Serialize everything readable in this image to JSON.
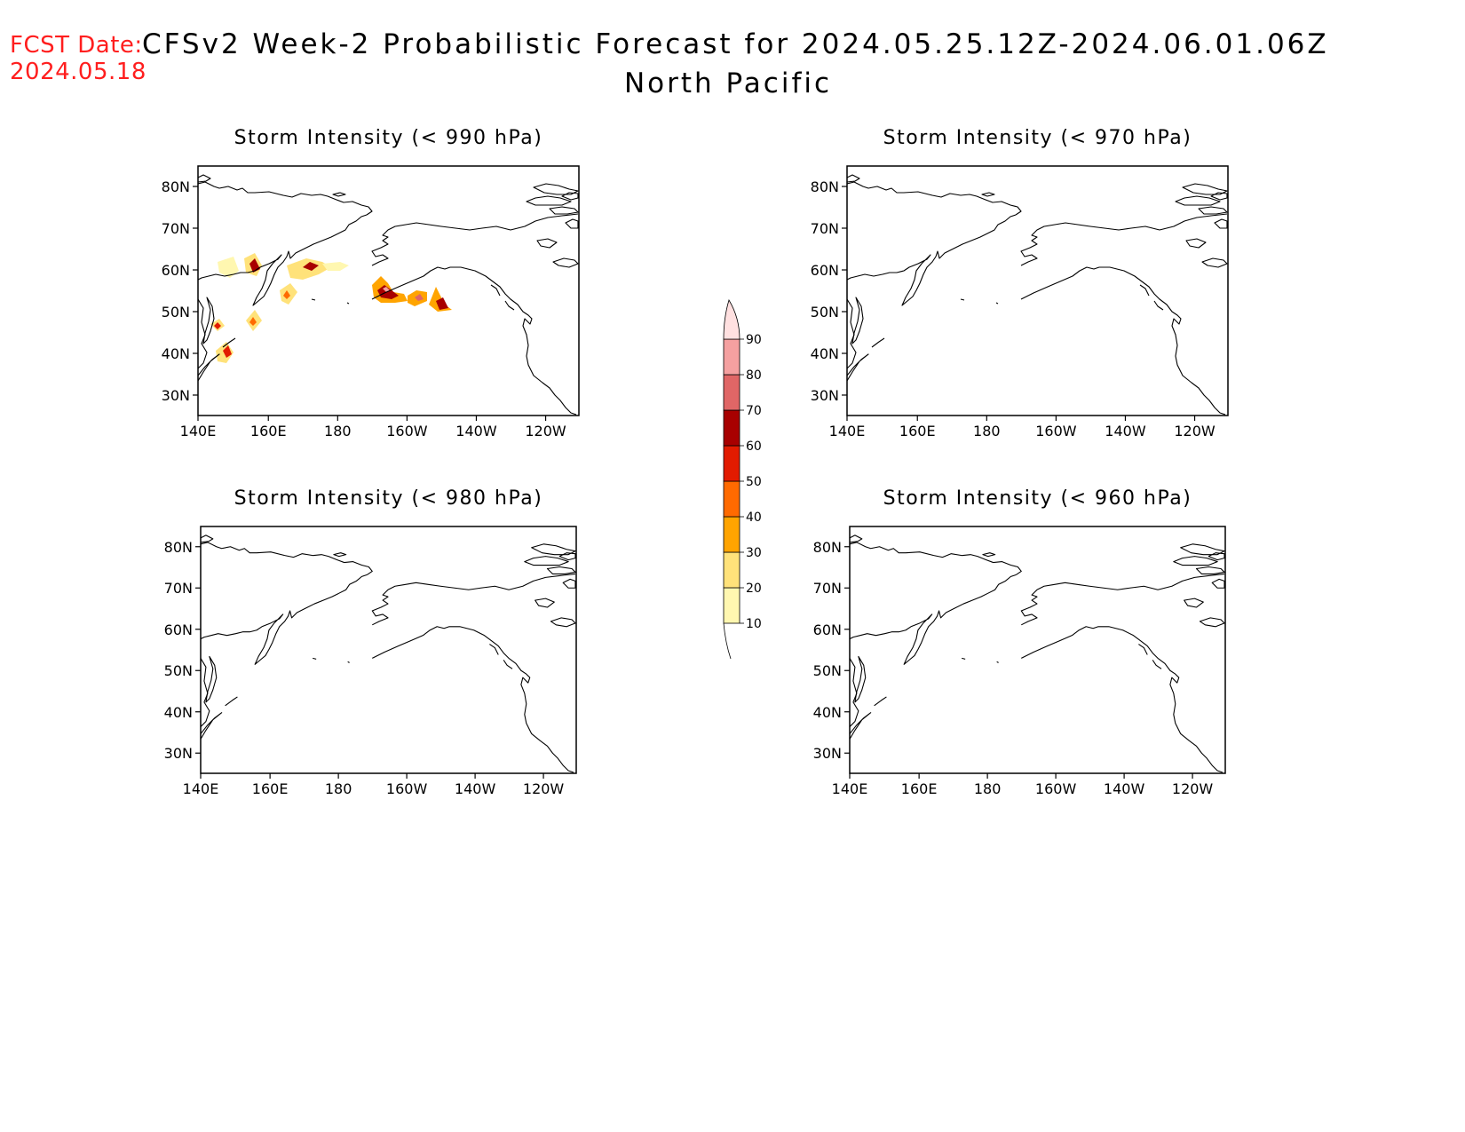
{
  "forecast_date": {
    "label": "FCST Date:",
    "value": "2024.05.18"
  },
  "title": "CFSv2 Week-2 Probabilistic Forecast for 2024.05.25.12Z-2024.06.01.06Z",
  "subtitle": "North Pacific",
  "axes": {
    "x_ticks": [
      "140E",
      "160E",
      "180",
      "160W",
      "140W",
      "120W"
    ],
    "y_ticks": [
      "80N",
      "70N",
      "60N",
      "50N",
      "40N",
      "30N"
    ]
  },
  "panels": [
    {
      "id": "p990",
      "title": "Storm Intensity (< 990 hPa)"
    },
    {
      "id": "p970",
      "title": "Storm Intensity (< 970 hPa)"
    },
    {
      "id": "p980",
      "title": "Storm Intensity (< 980 hPa)"
    },
    {
      "id": "p960",
      "title": "Storm Intensity (< 960 hPa)"
    }
  ],
  "colorbar": {
    "levels": [
      "10",
      "20",
      "30",
      "40",
      "50",
      "60",
      "70",
      "80",
      "90"
    ],
    "colors": [
      "#fff7b0",
      "#ffe27a",
      "#ffa400",
      "#ff6a00",
      "#e21b00",
      "#a80000",
      "#e06666",
      "#f5a0a0",
      "#ffe0e0"
    ]
  }
}
